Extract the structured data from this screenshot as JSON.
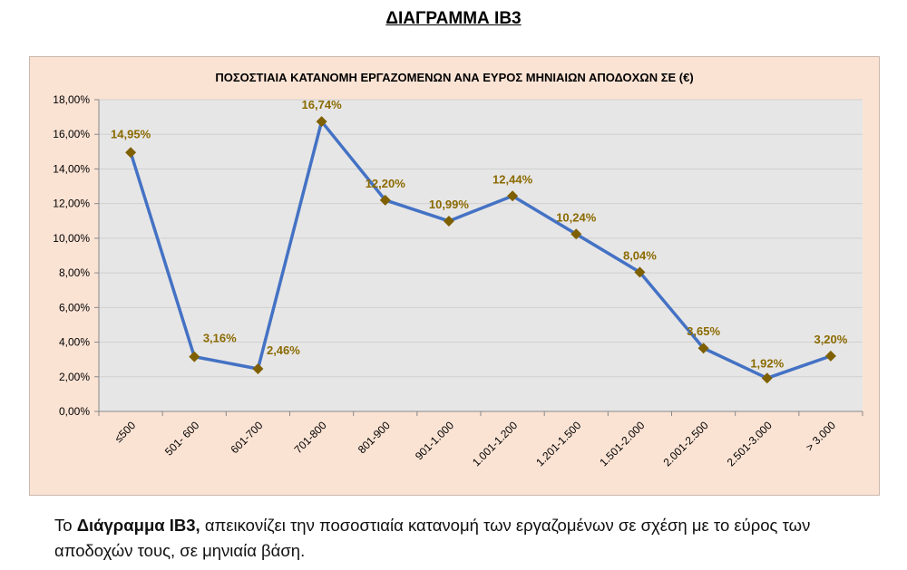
{
  "heading": "ΔΙΑΓΡΑΜΜΑ ΙΒ3",
  "paragraph": {
    "bold": "Διάγραμμα ΙΒ3,",
    "pre": "Το ",
    "rest": " απεικονίζει την ποσοστιαία κατανομή των εργαζομένων σε σχέση με το εύρος των αποδοχών τους, σε μηνιαία βάση."
  },
  "chart_data": {
    "type": "line",
    "title": "ΠΟΣΟΣΤΙΑΙΑ ΚΑΤΑΝΟΜΗ ΕΡΓΑΖΟΜΕΝΩΝ ΑΝΑ ΕΥΡΟΣ ΜΗΝΙΑΙΩΝ ΑΠΟΔΟΧΩΝ ΣΕ (€)",
    "categories": [
      "≤500",
      "501- 600",
      "601-700",
      "701-800",
      "801-900",
      "901-1.000",
      "1.001-1.200",
      "1.201-1.500",
      "1.501-2.000",
      "2.001-2.500",
      "2.501-3.000",
      "> 3.000"
    ],
    "values": [
      14.95,
      3.16,
      2.46,
      16.74,
      12.2,
      10.99,
      12.44,
      10.24,
      8.04,
      3.65,
      1.92,
      3.2
    ],
    "data_labels": [
      "14,95%",
      "3,16%",
      "2,46%",
      "16,74%",
      "12,20%",
      "10,99%",
      "12,44%",
      "10,24%",
      "8,04%",
      "3,65%",
      "1,92%",
      "3,20%"
    ],
    "yticks": [
      "0,00%",
      "2,00%",
      "4,00%",
      "6,00%",
      "8,00%",
      "10,00%",
      "12,00%",
      "14,00%",
      "16,00%",
      "18,00%"
    ],
    "ylim": [
      0,
      18
    ],
    "xlabel": "",
    "ylabel": "",
    "grid": true,
    "colors": {
      "line": "#4472c4",
      "marker": "#7f6000",
      "label": "#8a6a00",
      "plot_bg": "#e7e6e6",
      "chart_bg": "#fbe3d4"
    }
  }
}
